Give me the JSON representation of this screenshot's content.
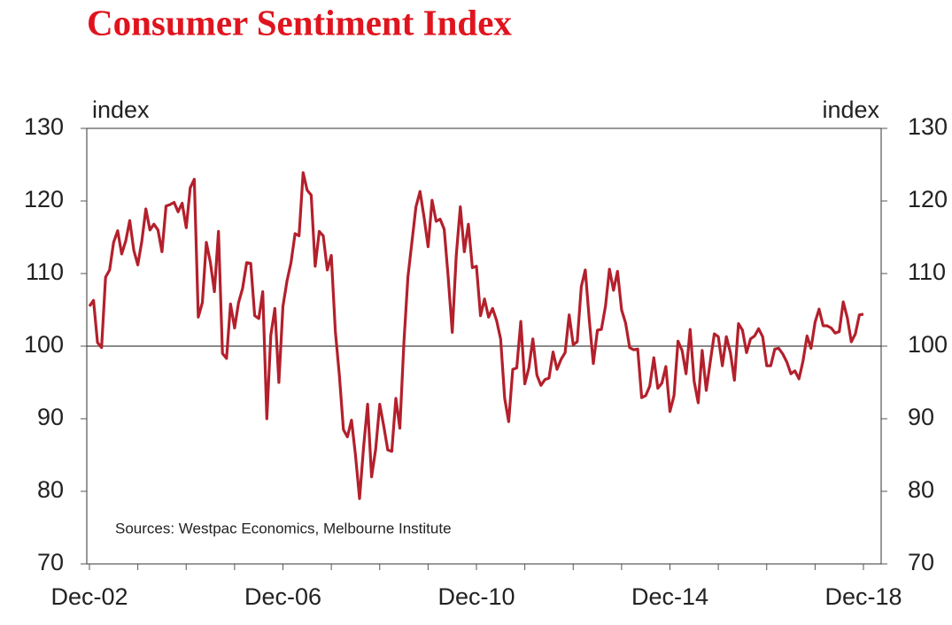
{
  "chart_data": {
    "type": "line",
    "title": "Consumer Sentiment Index",
    "y_label": "index",
    "y2_label": "index",
    "annotation": "Sources: Westpac Economics, Melbourne Institute",
    "categories": [
      "Dec-02",
      null,
      null,
      null,
      null,
      null,
      null,
      null,
      null,
      null,
      null,
      null,
      null,
      null,
      null,
      null,
      null,
      null,
      null,
      null,
      null,
      null,
      null,
      null,
      null,
      null,
      null,
      null,
      null,
      null,
      null,
      null,
      null,
      null,
      null,
      null,
      null,
      null,
      null,
      null,
      null,
      null,
      null,
      null,
      null,
      null,
      null,
      null,
      "Dec-06",
      null,
      null,
      null,
      null,
      null,
      null,
      null,
      null,
      null,
      null,
      null,
      null,
      null,
      null,
      null,
      null,
      null,
      null,
      null,
      null,
      null,
      null,
      null,
      null,
      null,
      null,
      null,
      null,
      null,
      null,
      null,
      null,
      null,
      null,
      null,
      null,
      null,
      null,
      null,
      null,
      null,
      null,
      null,
      null,
      null,
      null,
      null,
      "Dec-10",
      null,
      null,
      null,
      null,
      null,
      null,
      null,
      null,
      null,
      null,
      null,
      null,
      null,
      null,
      null,
      null,
      null,
      null,
      null,
      null,
      null,
      null,
      null,
      null,
      null,
      null,
      null,
      null,
      null,
      null,
      null,
      null,
      null,
      null,
      null,
      null,
      null,
      null,
      null,
      null,
      null,
      null,
      null,
      null,
      null,
      null,
      null,
      "Dec-14",
      null,
      null,
      null,
      null,
      null,
      null,
      null,
      null,
      null,
      null,
      null,
      null,
      null,
      null,
      null,
      null,
      null,
      null,
      null,
      null,
      null,
      null,
      null,
      null,
      null,
      null,
      null,
      null,
      null,
      null,
      null,
      null,
      null,
      null,
      null,
      null,
      null,
      null,
      null,
      null,
      null,
      null,
      null,
      null,
      null,
      null,
      null,
      "Dec-18"
    ],
    "series": [
      {
        "name": "Consumer Sentiment",
        "color": "#b3202c",
        "values": [
          105.5,
          106.3,
          100.5,
          99.8,
          109.5,
          110.5,
          114.3,
          115.9,
          112.7,
          114.5,
          117.3,
          113.2,
          111.2,
          114.5,
          118.9,
          116.0,
          116.8,
          116.0,
          113.0,
          119.3,
          119.5,
          119.8,
          118.5,
          119.7,
          116.3,
          121.8,
          123.0,
          104.0,
          106.0,
          114.3,
          111.5,
          107.5,
          115.8,
          99.0,
          98.3,
          105.8,
          102.5,
          106.0,
          108.0,
          111.5,
          111.4,
          104.2,
          103.8,
          107.5,
          90.0,
          101.5,
          105.2,
          95.0,
          105.5,
          109.0,
          111.5,
          115.5,
          115.2,
          123.9,
          121.5,
          120.8,
          111.0,
          115.8,
          115.2,
          110.5,
          112.5,
          102.0,
          96.0,
          88.5,
          87.5,
          89.8,
          85.0,
          79.0,
          86.0,
          92.0,
          82.0,
          85.8,
          92.0,
          89.0,
          85.7,
          85.5,
          92.8,
          88.7,
          100.5,
          109.5,
          114.4,
          119.2,
          121.3,
          117.8,
          113.7,
          120.1,
          117.2,
          117.5,
          116.1,
          109.5,
          101.9,
          112.5,
          119.2,
          113.0,
          116.8,
          110.8,
          111.0,
          104.2,
          106.5,
          104.0,
          105.2,
          103.5,
          101.0,
          92.8,
          89.6,
          96.8,
          97.0,
          103.4,
          94.8,
          97.0,
          101.0,
          96.0,
          94.6,
          95.4,
          95.6,
          99.2,
          96.8,
          98.2,
          99.1,
          104.3,
          100.2,
          100.6,
          108.2,
          110.5,
          103.5,
          97.6,
          102.2,
          102.3,
          105.5,
          110.6,
          107.7,
          110.3,
          105.0,
          103.2,
          99.8,
          99.5,
          99.6,
          92.9,
          93.2,
          94.5,
          98.4,
          94.2,
          94.9,
          97.2,
          91.0,
          93.2,
          100.7,
          99.4,
          96.2,
          102.3,
          95.2,
          92.2,
          99.4,
          93.9,
          97.8,
          101.7,
          101.3,
          97.3,
          101.3,
          99.1,
          95.3,
          103.1,
          102.2,
          99.1,
          101.0,
          101.4,
          102.4,
          101.3,
          97.3,
          97.3,
          99.6,
          99.7,
          98.9,
          97.8,
          96.2,
          96.6,
          95.5,
          97.9,
          101.4,
          99.7,
          103.3,
          105.1,
          102.8,
          102.8,
          102.5,
          101.8,
          102.0,
          106.1,
          103.9,
          100.6,
          101.7,
          104.3,
          104.4
        ]
      }
    ],
    "ylim": [
      70,
      130
    ],
    "yticks": [
      70,
      80,
      90,
      100,
      110,
      120,
      130
    ],
    "y2lim": [
      70,
      130
    ],
    "y2ticks": [
      70,
      80,
      90,
      100,
      110,
      120,
      130
    ],
    "reference_line": 100
  }
}
